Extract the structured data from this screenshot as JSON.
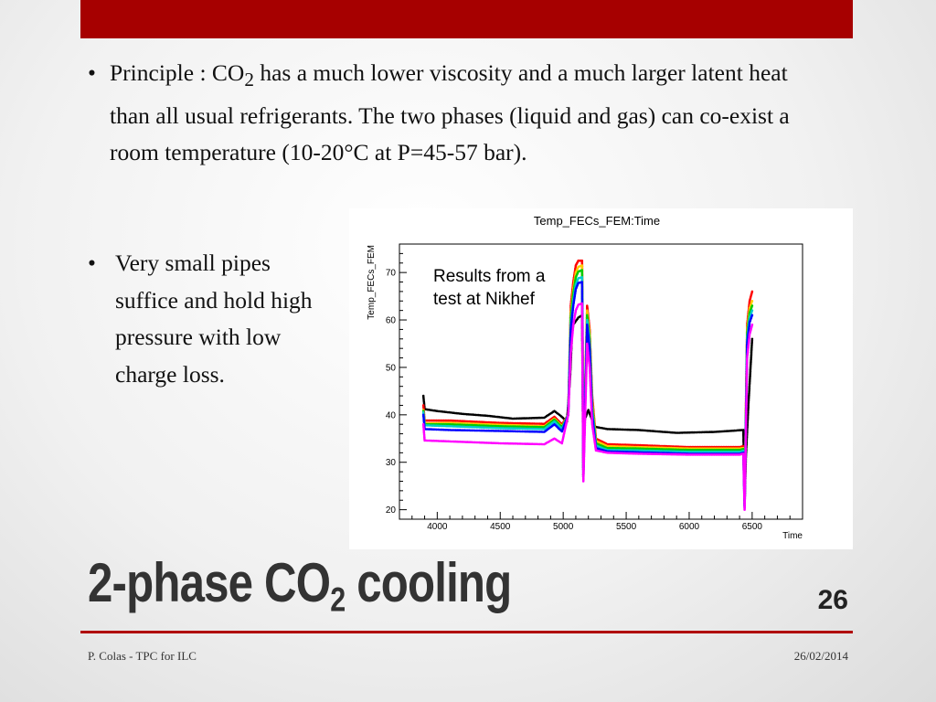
{
  "slide": {
    "bullet1": {
      "prefix": "Principle : CO",
      "sub": "2",
      "suffix": " has a much lower viscosity and a much larger latent heat than all usual refrigerants. The two phases (liquid and gas) can co-exist a room temperature (10-20°C at P=45-57 bar)."
    },
    "bullet2": "Very small pipes suffice and hold high pressure with low charge loss.",
    "title_main": "2-phase CO",
    "title_sub": "2",
    "title_end": " cooling",
    "number": "26",
    "footer_left": "P. Colas - TPC for ILC",
    "footer_right": "26/02/2014",
    "accent_color": "#a60000"
  },
  "chart_data": {
    "type": "scatter",
    "title": "Temp_FECs_FEM:Time",
    "xlabel": "Time",
    "ylabel": "Temp_FECs_FEM",
    "xlim": [
      3700,
      6900
    ],
    "ylim": [
      18,
      76
    ],
    "xticks": [
      4000,
      4500,
      5000,
      5500,
      6000,
      6500
    ],
    "yticks": [
      20,
      30,
      40,
      50,
      60,
      70
    ],
    "annotation": [
      "Results from a",
      "test at Nikhef"
    ],
    "series": [
      {
        "color": "#000000",
        "points": [
          [
            3890,
            44
          ],
          [
            3900,
            41.2
          ],
          [
            4000,
            40.8
          ],
          [
            4200,
            40.2
          ],
          [
            4400,
            39.8
          ],
          [
            4600,
            39.2
          ],
          [
            4850,
            39.4
          ],
          [
            4930,
            40.8
          ],
          [
            4980,
            39.8
          ],
          [
            5030,
            38.6
          ],
          [
            5055,
            48
          ],
          [
            5070,
            57
          ],
          [
            5080,
            59
          ],
          [
            5120,
            60.5
          ],
          [
            5150,
            61
          ],
          [
            5160,
            27
          ],
          [
            5170,
            39
          ],
          [
            5200,
            41
          ],
          [
            5250,
            37.5
          ],
          [
            5350,
            37
          ],
          [
            5600,
            36.8
          ],
          [
            5900,
            36.2
          ],
          [
            6200,
            36.4
          ],
          [
            6430,
            36.8
          ],
          [
            6440,
            21
          ],
          [
            6450,
            31
          ],
          [
            6470,
            42
          ],
          [
            6500,
            56
          ]
        ]
      },
      {
        "color": "#ff0000",
        "points": [
          [
            3890,
            42
          ],
          [
            3900,
            38.8
          ],
          [
            4100,
            38.8
          ],
          [
            4500,
            38.3
          ],
          [
            4850,
            38.1
          ],
          [
            4930,
            39.6
          ],
          [
            4990,
            38
          ],
          [
            5040,
            40
          ],
          [
            5060,
            63
          ],
          [
            5080,
            68
          ],
          [
            5100,
            71.5
          ],
          [
            5120,
            72.5
          ],
          [
            5150,
            72.5
          ],
          [
            5160,
            30
          ],
          [
            5190,
            63
          ],
          [
            5210,
            58
          ],
          [
            5230,
            44
          ],
          [
            5260,
            35
          ],
          [
            5350,
            33.8
          ],
          [
            5600,
            33.6
          ],
          [
            6000,
            33.2
          ],
          [
            6400,
            33.2
          ],
          [
            6430,
            33.4
          ],
          [
            6440,
            22
          ],
          [
            6460,
            59
          ],
          [
            6480,
            64
          ],
          [
            6500,
            66
          ]
        ]
      },
      {
        "color": "#ffcc00",
        "points": [
          [
            3890,
            41
          ],
          [
            3900,
            38.2
          ],
          [
            4100,
            38.3
          ],
          [
            4500,
            37.9
          ],
          [
            4850,
            37.6
          ],
          [
            4930,
            39.2
          ],
          [
            4990,
            37.6
          ],
          [
            5040,
            40
          ],
          [
            5060,
            61.5
          ],
          [
            5080,
            66.5
          ],
          [
            5100,
            70
          ],
          [
            5120,
            71.2
          ],
          [
            5150,
            71.5
          ],
          [
            5160,
            30
          ],
          [
            5190,
            62
          ],
          [
            5210,
            57
          ],
          [
            5230,
            43
          ],
          [
            5260,
            34.5
          ],
          [
            5350,
            33.4
          ],
          [
            5600,
            33.2
          ],
          [
            6000,
            32.9
          ],
          [
            6400,
            32.9
          ],
          [
            6430,
            33
          ],
          [
            6440,
            22
          ],
          [
            6460,
            58
          ],
          [
            6480,
            62.5
          ],
          [
            6500,
            64
          ]
        ]
      },
      {
        "color": "#00cc00",
        "points": [
          [
            3890,
            40.8
          ],
          [
            3900,
            38
          ],
          [
            4100,
            38
          ],
          [
            4500,
            37.6
          ],
          [
            4850,
            37.4
          ],
          [
            4930,
            39
          ],
          [
            4990,
            37.4
          ],
          [
            5040,
            40
          ],
          [
            5060,
            60.5
          ],
          [
            5080,
            65.5
          ],
          [
            5100,
            69
          ],
          [
            5120,
            70.2
          ],
          [
            5150,
            70.5
          ],
          [
            5160,
            29
          ],
          [
            5190,
            61
          ],
          [
            5210,
            56
          ],
          [
            5230,
            42
          ],
          [
            5260,
            34
          ],
          [
            5350,
            33
          ],
          [
            5600,
            32.9
          ],
          [
            6000,
            32.6
          ],
          [
            6400,
            32.6
          ],
          [
            6430,
            32.8
          ],
          [
            6440,
            22
          ],
          [
            6460,
            57
          ],
          [
            6480,
            61.5
          ],
          [
            6500,
            63
          ]
        ]
      },
      {
        "color": "#00cccc",
        "points": [
          [
            3890,
            40.5
          ],
          [
            3900,
            37.8
          ],
          [
            4100,
            37.6
          ],
          [
            4500,
            37.2
          ],
          [
            4850,
            37
          ],
          [
            4930,
            38.6
          ],
          [
            4990,
            37
          ],
          [
            5040,
            40
          ],
          [
            5060,
            59
          ],
          [
            5080,
            64
          ],
          [
            5100,
            67.5
          ],
          [
            5120,
            68.8
          ],
          [
            5150,
            69
          ],
          [
            5160,
            28
          ],
          [
            5190,
            60
          ],
          [
            5210,
            55
          ],
          [
            5230,
            41
          ],
          [
            5260,
            33.5
          ],
          [
            5350,
            32.6
          ],
          [
            5600,
            32.5
          ],
          [
            6000,
            32.2
          ],
          [
            6400,
            32.2
          ],
          [
            6430,
            32.4
          ],
          [
            6440,
            21
          ],
          [
            6460,
            56
          ],
          [
            6480,
            60.5
          ],
          [
            6500,
            62
          ]
        ]
      },
      {
        "color": "#0000ff",
        "points": [
          [
            3890,
            40
          ],
          [
            3900,
            37
          ],
          [
            4100,
            36.8
          ],
          [
            4500,
            36.6
          ],
          [
            4850,
            36.4
          ],
          [
            4930,
            38
          ],
          [
            4990,
            36.5
          ],
          [
            5040,
            40
          ],
          [
            5060,
            58
          ],
          [
            5080,
            63
          ],
          [
            5100,
            66.5
          ],
          [
            5120,
            67.8
          ],
          [
            5150,
            68
          ],
          [
            5160,
            27
          ],
          [
            5190,
            59
          ],
          [
            5210,
            54
          ],
          [
            5230,
            40
          ],
          [
            5260,
            33
          ],
          [
            5350,
            32.3
          ],
          [
            5600,
            32.1
          ],
          [
            6000,
            31.8
          ],
          [
            6400,
            31.8
          ],
          [
            6430,
            32
          ],
          [
            6440,
            20.5
          ],
          [
            6460,
            55
          ],
          [
            6480,
            59.5
          ],
          [
            6500,
            61
          ]
        ]
      },
      {
        "color": "#ff00ff",
        "points": [
          [
            3890,
            38
          ],
          [
            3900,
            34.6
          ],
          [
            4100,
            34.4
          ],
          [
            4500,
            34
          ],
          [
            4850,
            33.8
          ],
          [
            4930,
            35
          ],
          [
            4990,
            34
          ],
          [
            5040,
            40
          ],
          [
            5060,
            53
          ],
          [
            5080,
            59
          ],
          [
            5100,
            62
          ],
          [
            5120,
            63.2
          ],
          [
            5150,
            63.5
          ],
          [
            5160,
            26
          ],
          [
            5190,
            55
          ],
          [
            5210,
            50
          ],
          [
            5230,
            38
          ],
          [
            5260,
            32.5
          ],
          [
            5350,
            32
          ],
          [
            5600,
            31.8
          ],
          [
            6000,
            31.6
          ],
          [
            6400,
            31.6
          ],
          [
            6430,
            31.8
          ],
          [
            6440,
            20
          ],
          [
            6460,
            52
          ],
          [
            6480,
            57
          ],
          [
            6500,
            59
          ]
        ]
      }
    ]
  }
}
